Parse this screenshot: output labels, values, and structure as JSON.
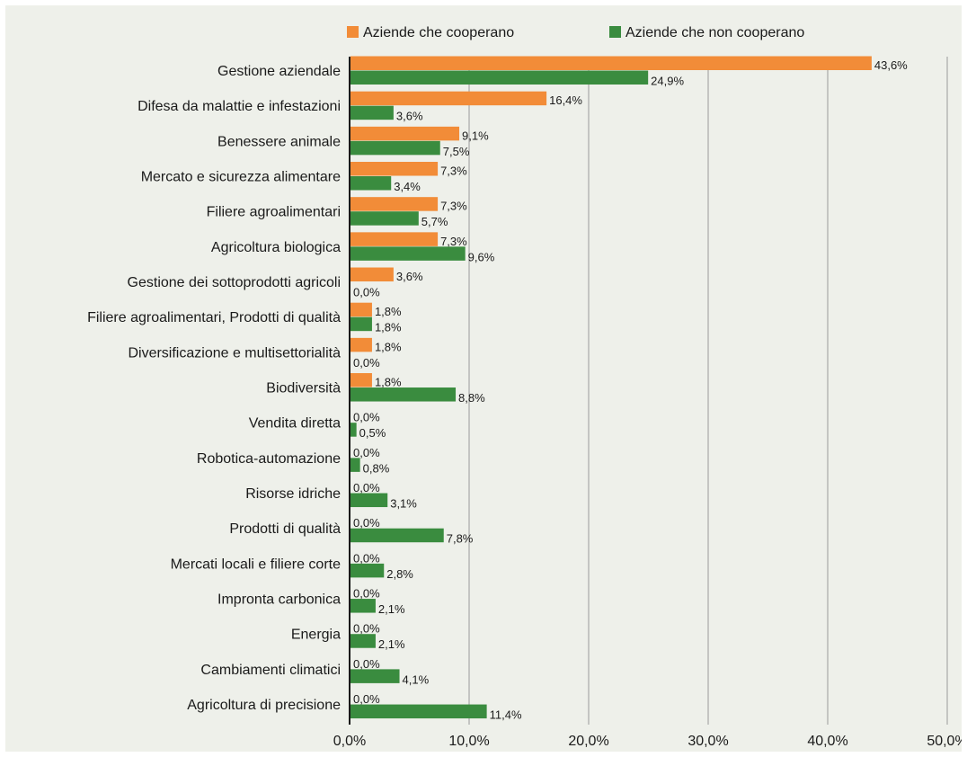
{
  "chart_data": {
    "type": "bar",
    "orientation": "horizontal",
    "categories": [
      "Gestione aziendale",
      "Difesa da malattie e infestazioni",
      "Benessere animale",
      "Mercato e sicurezza alimentare",
      "Filiere agroalimentari",
      "Agricoltura biologica",
      "Gestione dei sottoprodotti agricoli",
      "Filiere agroalimentari, Prodotti di qualità",
      "Diversificazione e multisettorialità",
      "Biodiversità",
      "Vendita diretta",
      "Robotica-automazione",
      "Risorse idriche",
      "Prodotti di qualità",
      "Mercati locali e filiere corte",
      "Impronta carbonica",
      "Energia",
      "Cambiamenti climatici",
      "Agricoltura di precisione"
    ],
    "series": [
      {
        "name": "Aziende che cooperano",
        "color": "#f28c38",
        "values": [
          43.6,
          16.4,
          9.1,
          7.3,
          7.3,
          7.3,
          3.6,
          1.8,
          1.8,
          1.8,
          0,
          0,
          0,
          0,
          0,
          0,
          0,
          0,
          0
        ],
        "labels": [
          "43,6%",
          "16,4%",
          "9,1%",
          "7,3%",
          "7,3%",
          "7,3%",
          "3,6%",
          "1,8%",
          "1,8%",
          "1,8%",
          "0,0%",
          "0,0%",
          "0,0%",
          "0,0%",
          "0,0%",
          "0,0%",
          "0,0%",
          "0,0%",
          "0,0%"
        ]
      },
      {
        "name": "Aziende che non cooperano",
        "color": "#3a8c3f",
        "values": [
          24.9,
          3.6,
          7.5,
          3.4,
          5.7,
          9.6,
          0,
          1.8,
          0,
          8.8,
          0.5,
          0.8,
          3.1,
          7.8,
          2.8,
          2.1,
          2.1,
          4.1,
          11.4
        ],
        "labels": [
          "24,9%",
          "3,6%",
          "7,5%",
          "3,4%",
          "5,7%",
          "9,6%",
          "0,0%",
          "1,8%",
          "0,0%",
          "8,8%",
          "0,5%",
          "0,8%",
          "3,1%",
          "7,8%",
          "2,8%",
          "2,1%",
          "2,1%",
          "4,1%",
          "11,4%"
        ]
      }
    ],
    "xlim": [
      0,
      50
    ],
    "xticks": [
      0,
      10,
      20,
      30,
      40,
      50
    ],
    "xtick_labels": [
      "0,0%",
      "10,0%",
      "20,0%",
      "30,0%",
      "40,0%",
      "50,0%"
    ],
    "grid": true,
    "legend_position": "top"
  }
}
